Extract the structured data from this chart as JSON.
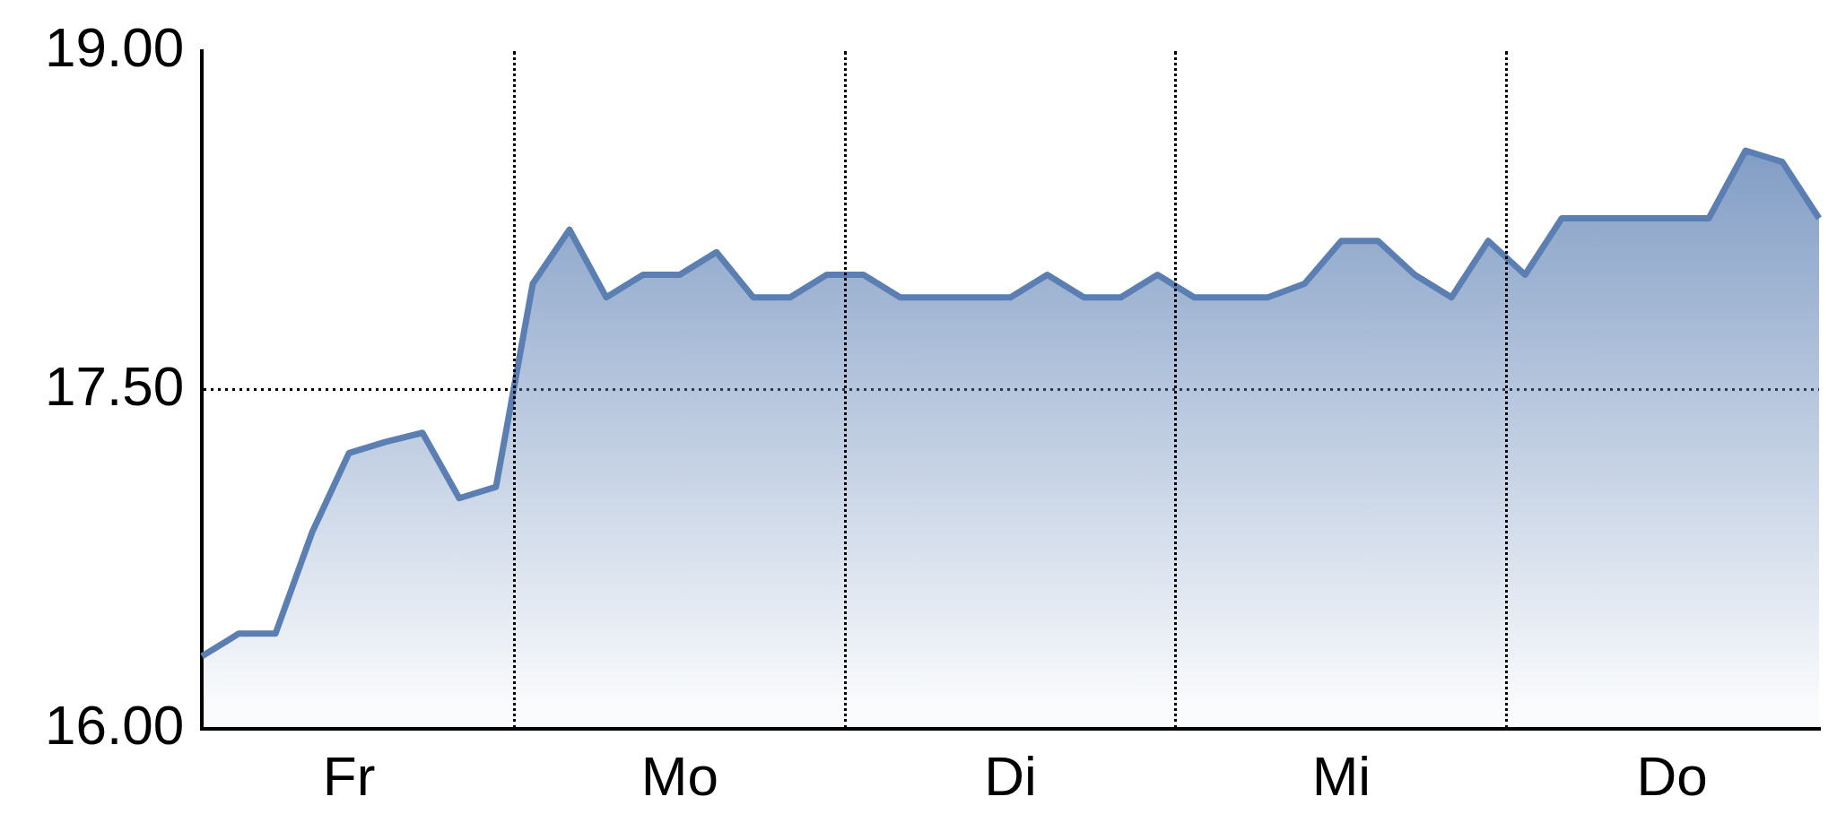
{
  "chart_data": {
    "type": "area",
    "categories": [
      null,
      null,
      null,
      null,
      "Fr",
      null,
      null,
      null,
      null,
      null,
      null,
      null,
      null,
      "Mo",
      null,
      null,
      null,
      null,
      null,
      null,
      null,
      null,
      "Di",
      null,
      null,
      null,
      null,
      null,
      null,
      null,
      null,
      "Mi",
      null,
      null,
      null,
      null,
      null,
      null,
      null,
      null,
      "Do",
      null,
      null,
      null,
      null
    ],
    "series": [
      {
        "color": "#5b7fb3",
        "values": [
          16.32,
          16.42,
          16.42,
          16.87,
          17.22,
          17.27,
          17.31,
          17.02,
          17.07,
          17.97,
          18.21,
          17.91,
          18.01,
          18.01,
          18.11,
          17.91,
          17.91,
          18.01,
          18.01,
          17.91,
          17.91,
          17.91,
          17.91,
          18.01,
          17.91,
          17.91,
          18.01,
          17.91,
          17.91,
          17.91,
          17.97,
          18.16,
          18.16,
          18.01,
          17.91,
          18.16,
          18.01,
          18.26,
          18.26,
          18.26,
          18.26,
          18.26,
          18.56,
          18.51,
          18.26
        ]
      }
    ],
    "ylim": [
      16,
      19
    ],
    "yticks": [
      {
        "value": 16,
        "label": "16.00"
      },
      {
        "value": 17.5,
        "label": "17.50"
      },
      {
        "value": 19,
        "label": "19.00"
      }
    ],
    "grid": "y",
    "line_style": "solid"
  }
}
